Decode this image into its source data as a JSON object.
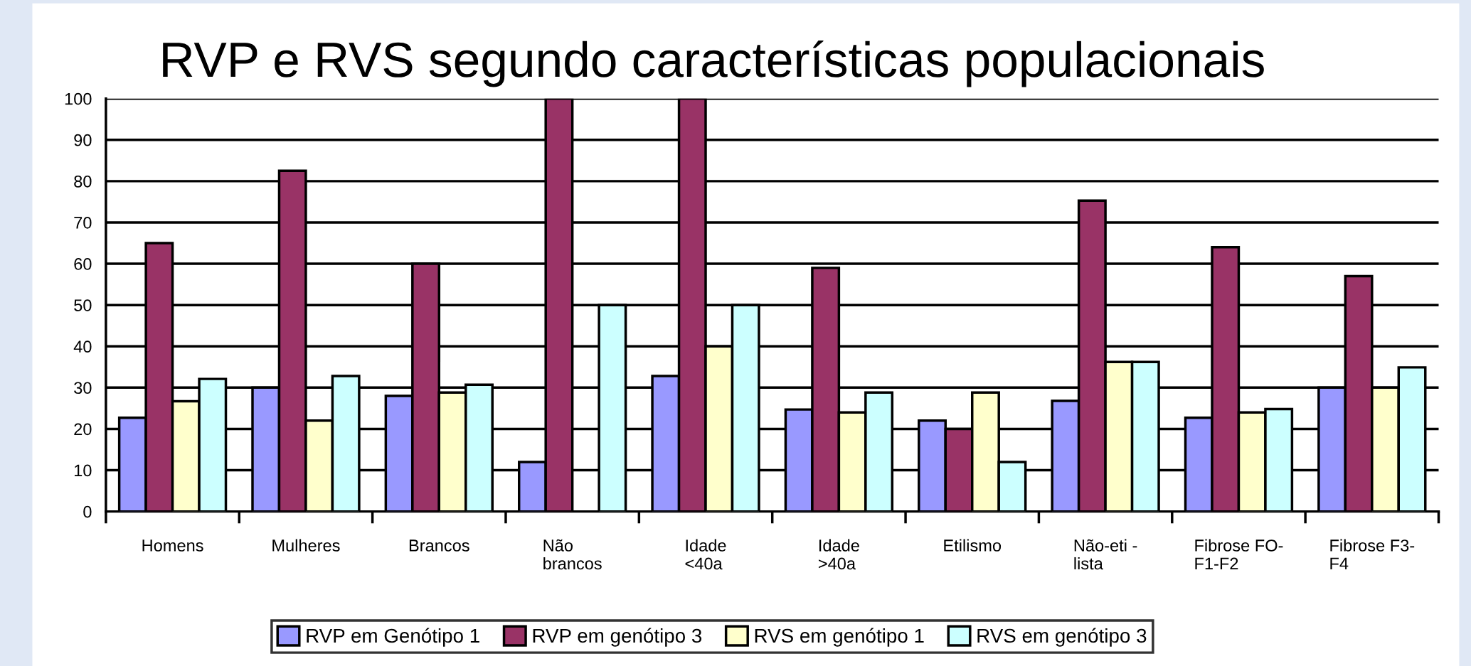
{
  "chart_data": {
    "type": "bar",
    "title": "RVP e RVS segundo características populacionais",
    "categories": [
      "Homens",
      "Mulheres",
      "Brancos",
      "Não\nbrancos",
      "Idade\n<40a",
      "Idade\n>40a",
      "Etilismo",
      "Não-eti -\nlista",
      "Fibrose FO-\nF1-F2",
      "Fibrose F3-\nF4"
    ],
    "series": [
      {
        "name": "RVP em Genótipo 1",
        "color": "#9999ff",
        "values": [
          22.7,
          30,
          28,
          12,
          32.8,
          24.7,
          22,
          26.8,
          22.7,
          30
        ]
      },
      {
        "name": "RVP em genótipo 3",
        "color": "#993366",
        "values": [
          65,
          82.5,
          60,
          100,
          100,
          59,
          20,
          75.3,
          64,
          57
        ]
      },
      {
        "name": "RVS em genótipo 1",
        "color": "#ffffcc",
        "values": [
          26.7,
          22,
          28.8,
          null,
          40,
          24,
          28.8,
          36.2,
          24,
          30
        ]
      },
      {
        "name": "RVS em genótipo 3",
        "color": "#ccffff",
        "values": [
          32.1,
          32.8,
          30.7,
          50,
          50,
          28.8,
          12,
          36.2,
          24.8,
          34.9
        ]
      }
    ],
    "ylim": [
      0,
      100
    ],
    "yticks": [
      0,
      10,
      20,
      30,
      40,
      50,
      60,
      70,
      80,
      90,
      100
    ],
    "grid": "y",
    "legend": "bottom"
  }
}
